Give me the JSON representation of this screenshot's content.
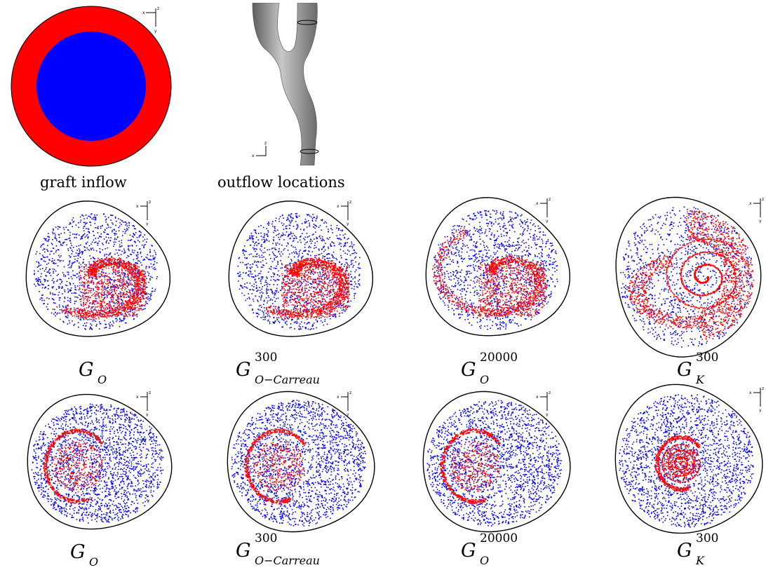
{
  "top_row": {
    "graft_inflow": {
      "caption": "graft inflow",
      "outer_color": "#ff0000",
      "inner_color": "#0000ff"
    },
    "outflow_locations": {
      "caption": "outflow locations",
      "surface_color": "#8a8a8a"
    }
  },
  "axes_labels": {
    "x": "x",
    "y": "y",
    "z": "z"
  },
  "particle_colors": {
    "red": "#ff0000",
    "blue": "#0000ff"
  },
  "rows": [
    {
      "panels": [
        {
          "main": "G",
          "sub": "O",
          "sup": ""
        },
        {
          "main": "G",
          "sub": "O−Carreau",
          "sup": "300"
        },
        {
          "main": "G",
          "sub": "O",
          "sup": "20000"
        },
        {
          "main": "G",
          "sub": "K",
          "sup": "300"
        }
      ]
    },
    {
      "panels": [
        {
          "main": "G",
          "sub": "O",
          "sup": ""
        },
        {
          "main": "G",
          "sub": "O−Carreau",
          "sup": "300"
        },
        {
          "main": "G",
          "sub": "O",
          "sup": "20000"
        },
        {
          "main": "G",
          "sub": "K",
          "sup": "300"
        }
      ]
    }
  ]
}
